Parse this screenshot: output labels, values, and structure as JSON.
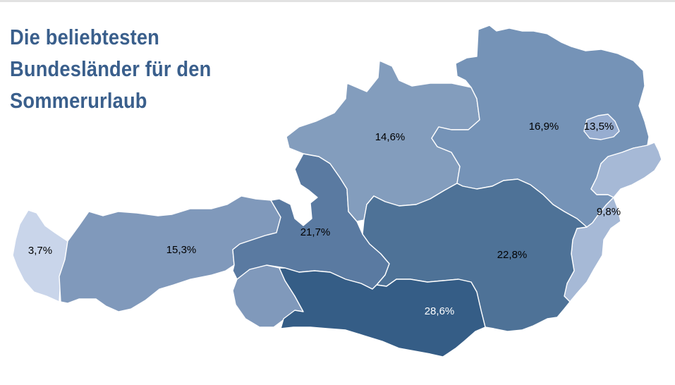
{
  "title_lines": [
    "Die beliebtesten",
    "Bundesländer für den",
    "Sommerurlaub"
  ],
  "regions": [
    {
      "key": "vorarlberg",
      "value": "3,7%",
      "color": "#c9d5ea",
      "label_color": "#000000"
    },
    {
      "key": "tirol",
      "value": "15,3%",
      "color": "#8099bb",
      "label_color": "#000000"
    },
    {
      "key": "osttirol",
      "value": "",
      "color": "#8099bb",
      "label_color": "#000000"
    },
    {
      "key": "salzburg",
      "value": "21,7%",
      "color": "#5a7aa1",
      "label_color": "#000000"
    },
    {
      "key": "oberoesterreich",
      "value": "14,6%",
      "color": "#839dbd",
      "label_color": "#000000"
    },
    {
      "key": "niederoesterreich",
      "value": "16,9%",
      "color": "#7593b7",
      "label_color": "#000000"
    },
    {
      "key": "wien",
      "value": "13,5%",
      "color": "#97add0",
      "label_color": "#000000"
    },
    {
      "key": "burgenland",
      "value": "9,8%",
      "color": "#a6b9d6",
      "label_color": "#000000"
    },
    {
      "key": "steiermark",
      "value": "22,8%",
      "color": "#4e7297",
      "label_color": "#000000"
    },
    {
      "key": "kaernten",
      "value": "28,6%",
      "color": "#355d86",
      "label_color": "#ffffff"
    }
  ]
}
